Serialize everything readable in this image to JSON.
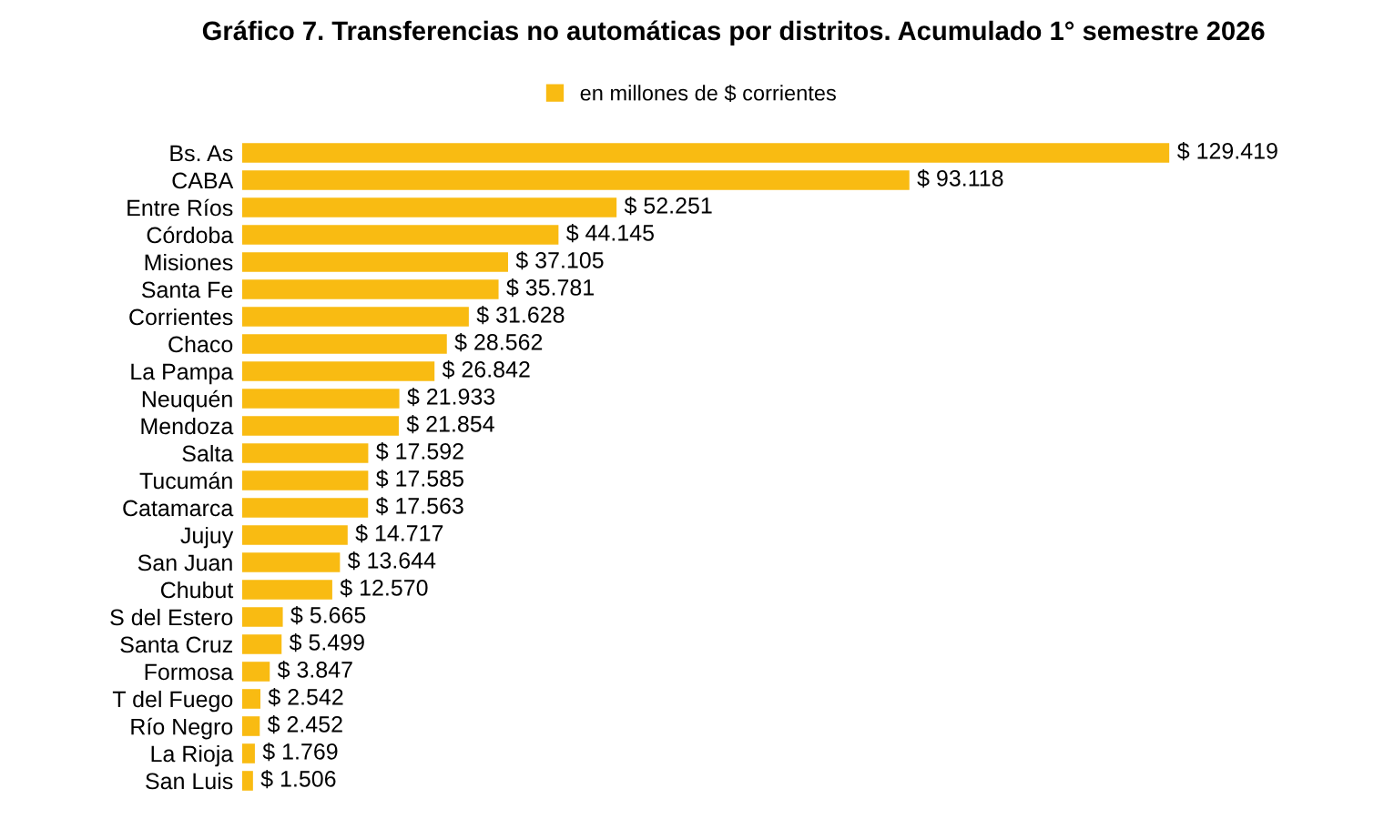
{
  "chart_data": {
    "type": "bar",
    "orientation": "horizontal",
    "title": "Gráfico 7. Transferencias no automáticas por distritos. Acumulado 1° semestre 2026",
    "categories": [
      "Bs. As",
      "CABA",
      "Entre Ríos",
      "Córdoba",
      "Misiones",
      "Santa Fe",
      "Corrientes",
      "Chaco",
      "La Pampa",
      "Neuquén",
      "Mendoza",
      "Salta",
      "Tucumán",
      "Catamarca",
      "Jujuy",
      "San Juan",
      "Chubut",
      "S del Estero",
      "Santa Cruz",
      "Formosa",
      "T del Fuego",
      "Río Negro",
      "La Rioja",
      "San Luis"
    ],
    "series": [
      {
        "name": "en millones de $ corrientes",
        "color": "#f9bb12",
        "values": [
          129419,
          93118,
          52251,
          44145,
          37105,
          35781,
          31628,
          28562,
          26842,
          21933,
          21854,
          17592,
          17585,
          17563,
          14717,
          13644,
          12570,
          5665,
          5499,
          3847,
          2542,
          2452,
          1769,
          1506
        ],
        "value_labels": [
          "$ 129.419",
          "$ 93.118",
          "$ 52.251",
          "$ 44.145",
          "$ 37.105",
          "$ 35.781",
          "$ 31.628",
          "$ 28.562",
          "$ 26.842",
          "$ 21.933",
          "$ 21.854",
          "$ 17.592",
          "$ 17.585",
          "$ 17.563",
          "$ 14.717",
          "$ 13.644",
          "$ 12.570",
          "$ 5.665",
          "$ 5.499",
          "$ 3.847",
          "$ 2.542",
          "$ 2.452",
          "$ 1.769",
          "$ 1.506"
        ]
      }
    ],
    "legend": "top"
  }
}
